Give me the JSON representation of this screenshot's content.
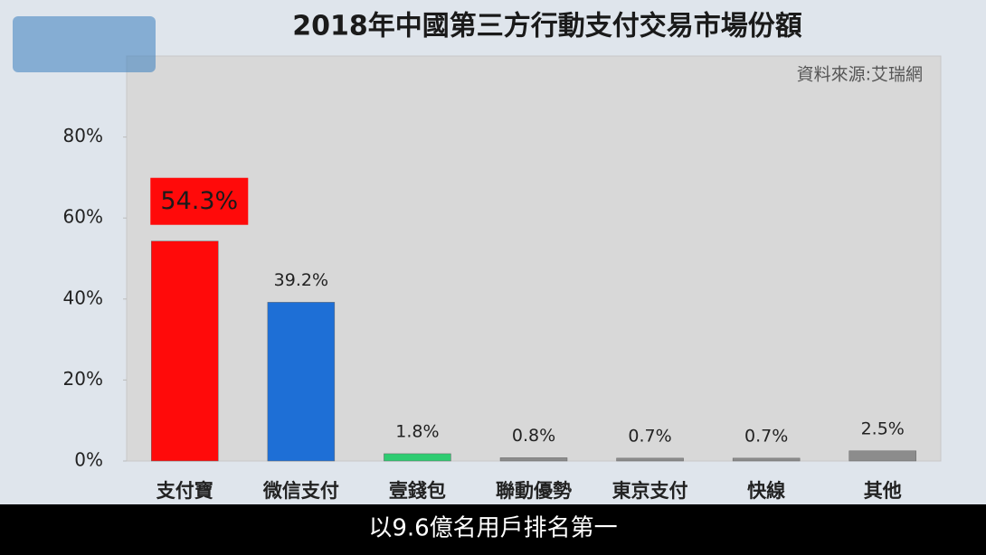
{
  "chart_data": {
    "type": "bar",
    "title": "2018年中國第三方行動支付交易市場份額",
    "source": "資料來源:艾瑞網",
    "caption": "以9.6億名用戶排名第一",
    "categories": [
      "支付寶",
      "微信支付",
      "壹錢包",
      "聯動優勢",
      "東京支付",
      "快線",
      "其他"
    ],
    "values": [
      54.3,
      39.2,
      1.8,
      0.8,
      0.7,
      0.7,
      2.5
    ],
    "value_labels": [
      "54.3%",
      "39.2%",
      "1.8%",
      "0.8%",
      "0.7%",
      "0.7%",
      "2.5%"
    ],
    "colors": [
      "#ff0a0a",
      "#1e6fd6",
      "#2ecc71",
      "#8c8c8c",
      "#8c8c8c",
      "#8c8c8c",
      "#8c8c8c"
    ],
    "highlight_index": 0,
    "ylim": [
      0,
      100
    ],
    "yticks": [
      {
        "value": 0,
        "label": "0%"
      },
      {
        "value": 20,
        "label": "20%"
      },
      {
        "value": 40,
        "label": "40%"
      },
      {
        "value": 60,
        "label": "60%"
      },
      {
        "value": 80,
        "label": "80%"
      }
    ]
  }
}
